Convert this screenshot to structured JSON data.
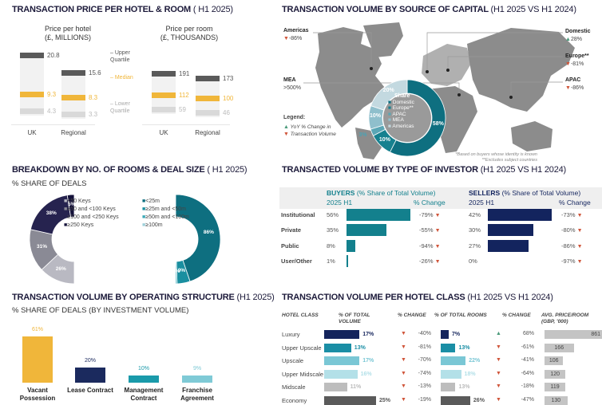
{
  "colors": {
    "down": "#d0553a",
    "up": "#4a9a7a",
    "navy": "#1c1a3a",
    "teal": "#0e6f80",
    "gold": "#f0b63a"
  },
  "price": {
    "title": "TRANSACTION PRICE PER HOTEL & ROOM",
    "title_sub": "( H1 2025)",
    "hotel_title": [
      "Price per hotel",
      "(£, MILLIONS)"
    ],
    "room_title": [
      "Price per room",
      "(£, THOUSANDS)"
    ],
    "legend": {
      "upper": "Upper Quartile",
      "median": "Median",
      "lower": "Lower Quartile"
    }
  },
  "capital": {
    "title": "TRANSACTION VOLUME BY SOURCE OF CAPITAL",
    "title_sub": "(H1 2025 VS H1 2024)",
    "regions": [
      {
        "name": "Americas",
        "change": "-86%",
        "dir": "down"
      },
      {
        "name": "Domestic",
        "change": "28%",
        "dir": "up"
      },
      {
        "name": "Europe**",
        "change": "-81%",
        "dir": "down"
      },
      {
        "name": "MEA",
        "change": ">500%",
        "dir": "none"
      },
      {
        "name": "APAC",
        "change": "-86%",
        "dir": "down"
      }
    ],
    "legend_title": "Legend:",
    "legend_lines": [
      "YoY % Change in",
      "Transaction Volume"
    ],
    "share_title": "Share",
    "footnotes": [
      "*Based on buyers whose identity is known",
      "**Excludes subject countries"
    ]
  },
  "breakdown": {
    "title": "BREAKDOWN BY NO. OF ROOMS & DEAL SIZE",
    "title_sub": "( H1 2025)",
    "subtitle": "% SHARE OF DEALS"
  },
  "investor": {
    "title": "TRANSACTED VOLUME BY TYPE OF INVESTOR",
    "title_sub": "(H1 2025 VS H1 2024)",
    "buyers_label": "BUYERS",
    "sellers_label": "SELLERS",
    "share_label": "(% Share of Total Volume)",
    "period": "2025 H1",
    "change_label": "% Change"
  },
  "operating": {
    "title": "TRANSACTION VOLUME BY OPERATING STRUCTURE",
    "title_sub": "(H1 2025)",
    "subtitle": "% SHARE OF DEALS (BY INVESTMENT VOLUME)"
  },
  "hotelclass": {
    "title": "TRANSACTION VOLUME PER HOTEL CLASS",
    "title_sub": "(H1 2025 VS H1 2024)",
    "headers": {
      "class": "HOTEL CLASS",
      "volume": "% OF TOTAL VOLUME",
      "vchange": "% CHANGE",
      "rooms": "% OF TOTAL ROOMS",
      "rchange": "% CHANGE",
      "price": "AVG. PRICE/ROOM (GBP, '000)"
    }
  },
  "chart_data": [
    {
      "type": "bar",
      "id": "price-per-hotel",
      "unit": "£ millions",
      "categories": [
        "UK",
        "Regional"
      ],
      "series": [
        {
          "name": "Upper Quartile",
          "values": [
            20.8,
            15.6
          ],
          "color": "#5a5a5a"
        },
        {
          "name": "Median",
          "values": [
            9.3,
            8.3
          ],
          "color": "#f0b63a"
        },
        {
          "name": "Lower Quartile",
          "values": [
            4.3,
            3.3
          ],
          "color": "#d9d9d9"
        }
      ]
    },
    {
      "type": "bar",
      "id": "price-per-room",
      "unit": "£ thousands",
      "categories": [
        "UK",
        "Regional"
      ],
      "series": [
        {
          "name": "Upper Quartile",
          "values": [
            191,
            173
          ],
          "color": "#5a5a5a"
        },
        {
          "name": "Median",
          "values": [
            112,
            100
          ],
          "color": "#f0b63a"
        },
        {
          "name": "Lower Quartile",
          "values": [
            59,
            46
          ],
          "color": "#d9d9d9"
        }
      ]
    },
    {
      "type": "pie",
      "id": "source-of-capital-share",
      "categories": [
        "Domestic",
        "Europe**",
        "APAC",
        "MEA",
        "Americas"
      ],
      "values": [
        58,
        10,
        3,
        10,
        20
      ],
      "colors": [
        "#0e6f80",
        "#16818f",
        "#5aa6b5",
        "#8fbfcc",
        "#c3d9e0"
      ]
    },
    {
      "type": "pie",
      "id": "rooms-share",
      "categories": [
        "<50 Keys",
        "≥50 and <100 Keys",
        "≥100 and <250 Keys",
        "≥250 Keys"
      ],
      "values": [
        26,
        31,
        38,
        5
      ],
      "colors": [
        "#b9b9c2",
        "#8a8a95",
        "#26234f",
        "#15123a"
      ]
    },
    {
      "type": "pie",
      "id": "deal-size-share",
      "categories": [
        "<25m",
        "≥25m and <50m",
        "≥50m and <100m",
        "≥100m"
      ],
      "values": [
        86,
        9,
        1,
        null
      ],
      "labels": [
        "86%",
        "9%",
        "1%",
        ""
      ],
      "colors": [
        "#0e6f80",
        "#1a8fa0",
        "#3aa9b8",
        "#9fd0da"
      ]
    },
    {
      "type": "bar",
      "id": "investor-type",
      "categories": [
        "Institutional",
        "Private",
        "Public",
        "User/Other"
      ],
      "series": [
        {
          "name": "BUYERS",
          "values": [
            56,
            35,
            8,
            1
          ],
          "change": [
            "-79%",
            "-55%",
            "-94%",
            "-26%"
          ],
          "color": "#13808d"
        },
        {
          "name": "SELLERS",
          "values": [
            42,
            30,
            27,
            0
          ],
          "change": [
            "-73%",
            "-80%",
            "-86%",
            "-97%"
          ],
          "color": "#13245e"
        }
      ]
    },
    {
      "type": "bar",
      "id": "operating-structure",
      "categories": [
        "Vacant Possession",
        "Lease Contract",
        "Management Contract",
        "Franchise Agreement"
      ],
      "values": [
        61,
        20,
        10,
        9
      ],
      "colors": [
        "#f0b63a",
        "#1b2a5e",
        "#1a9aaa",
        "#7fcad6"
      ]
    },
    {
      "type": "table",
      "id": "hotel-class",
      "rows": [
        {
          "class": "Luxury",
          "volume": 17,
          "vchange": "-40%",
          "vdir": "down",
          "rooms": 7,
          "rchange": "68%",
          "rdir": "up",
          "price": 861,
          "color": "#14245c",
          "labelcolor": "#14245c"
        },
        {
          "class": "Upper Upscale",
          "volume": 13,
          "vchange": "-81%",
          "vdir": "down",
          "rooms": 13,
          "rchange": "-61%",
          "rdir": "down",
          "price": 166,
          "color": "#1a8ea5",
          "labelcolor": "#1a8ea5"
        },
        {
          "class": "Upscale",
          "volume": 17,
          "vchange": "-70%",
          "vdir": "down",
          "rooms": 22,
          "rchange": "-41%",
          "rdir": "down",
          "price": 106,
          "color": "#7ac7d5",
          "labelcolor": "#7ac7d5"
        },
        {
          "class": "Upper Midscale",
          "volume": 16,
          "vchange": "-74%",
          "vdir": "down",
          "rooms": 18,
          "rchange": "-64%",
          "rdir": "down",
          "price": 120,
          "color": "#b3e0e8",
          "labelcolor": "#b3e0e8"
        },
        {
          "class": "Midscale",
          "volume": 11,
          "vchange": "-13%",
          "vdir": "down",
          "rooms": 13,
          "rchange": "-18%",
          "rdir": "down",
          "price": 119,
          "color": "#bdbdbd",
          "labelcolor": "#bbbbbb"
        },
        {
          "class": "Economy",
          "volume": 25,
          "vchange": "-19%",
          "vdir": "down",
          "rooms": 26,
          "rchange": "-47%",
          "rdir": "down",
          "price": 130,
          "color": "#5a5a5a",
          "labelcolor": "#555555"
        }
      ]
    }
  ]
}
